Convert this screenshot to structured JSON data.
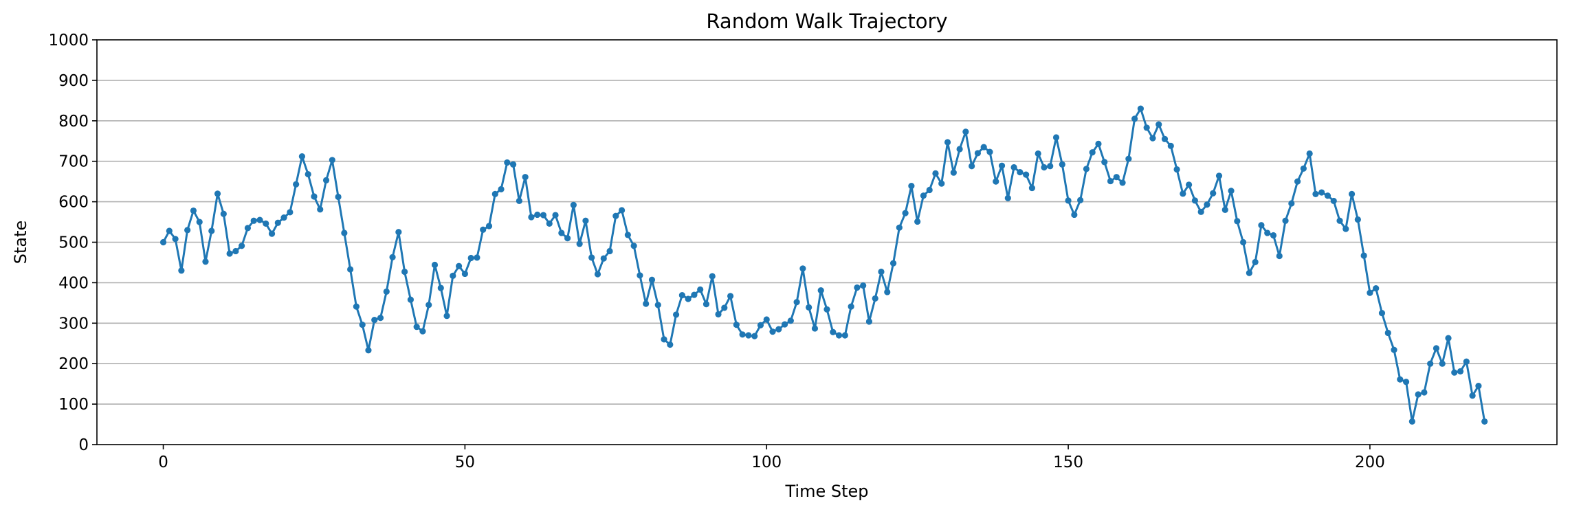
{
  "colors": {
    "line": "#1f77b4",
    "grid": "#b0b0b0",
    "axis": "#000000",
    "background": "#ffffff"
  },
  "chart_data": {
    "type": "line",
    "title": "Random Walk Trajectory",
    "xlabel": "Time Step",
    "ylabel": "State",
    "xlim": [
      -11,
      231
    ],
    "ylim": [
      0,
      1000
    ],
    "xticks": [
      0,
      50,
      100,
      150,
      200
    ],
    "yticks": [
      0,
      100,
      200,
      300,
      400,
      500,
      600,
      700,
      800,
      900,
      1000
    ],
    "grid": "horizontal",
    "marker": "circle",
    "series": [
      {
        "values": [
          500,
          528,
          508,
          430,
          530,
          578,
          550,
          452,
          528,
          620,
          570,
          472,
          478,
          491,
          535,
          553,
          555,
          546,
          521,
          548,
          561,
          574,
          643,
          712,
          668,
          613,
          581,
          653,
          703,
          612,
          523,
          433,
          341,
          296,
          233,
          308,
          313,
          378,
          463,
          525,
          427,
          358,
          291,
          280,
          345,
          444,
          387,
          318,
          417,
          441,
          422,
          461,
          462,
          531,
          540,
          619,
          631,
          697,
          692,
          602,
          661,
          562,
          568,
          567,
          546,
          567,
          523,
          510,
          592,
          496,
          553,
          462,
          421,
          460,
          478,
          565,
          579,
          518,
          491,
          418,
          348,
          407,
          345,
          260,
          247,
          321,
          369,
          360,
          370,
          383,
          347,
          416,
          322,
          338,
          367,
          296,
          272,
          270,
          268,
          295,
          309,
          279,
          285,
          297,
          306,
          352,
          435,
          339,
          287,
          381,
          334,
          278,
          270,
          270,
          341,
          388,
          393,
          304,
          361,
          427,
          377,
          448,
          536,
          572,
          639,
          551,
          615,
          629,
          670,
          645,
          747,
          672,
          730,
          773,
          688,
          720,
          735,
          723,
          650,
          689,
          609,
          685,
          673,
          667,
          634,
          719,
          685,
          688,
          759,
          692,
          603,
          568,
          604,
          681,
          722,
          743,
          698,
          651,
          661,
          647,
          706,
          805,
          830,
          783,
          757,
          791,
          755,
          738,
          680,
          620,
          642,
          603,
          575,
          593,
          621,
          664,
          580,
          627,
          552,
          500,
          424,
          451,
          542,
          523,
          517,
          466,
          553,
          596,
          650,
          682,
          719,
          619,
          623,
          615,
          602,
          553,
          533,
          619,
          556,
          467,
          375,
          386,
          325,
          276,
          234,
          161,
          155,
          57,
          124,
          129,
          200,
          238,
          200,
          263,
          178,
          181,
          205,
          121,
          145,
          57
        ]
      }
    ]
  }
}
